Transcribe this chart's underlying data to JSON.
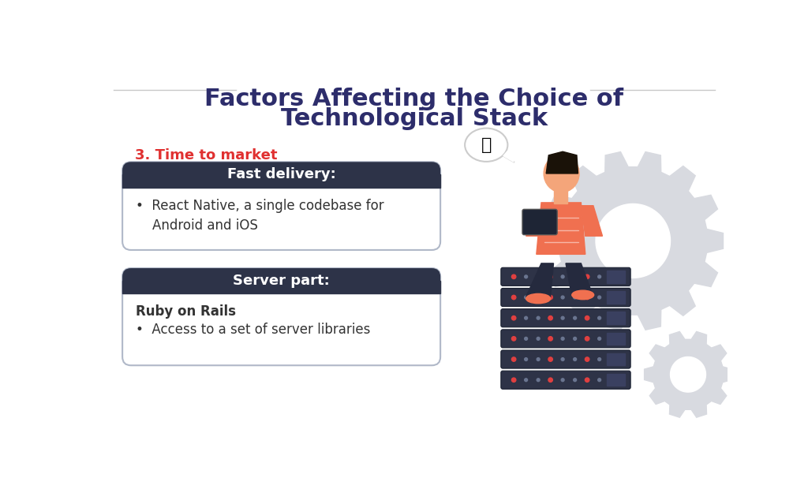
{
  "background_color": "#ffffff",
  "title_line1": "Factors Affecting the Choice of",
  "title_line2": "Technological Stack",
  "title_color": "#2d2d6b",
  "title_fontsize": 22,
  "divider_color": "#c8c8c8",
  "subtitle": "3. Time to market",
  "subtitle_color": "#e03030",
  "subtitle_fontsize": 13,
  "box1_header": "Fast delivery:",
  "box1_header_bg": "#2d3348",
  "box1_header_color": "#ffffff",
  "box1_bullet": "•  React Native, a single codebase for\n    Android and iOS",
  "box1_body_color": "#333333",
  "box2_header": "Server part:",
  "box2_header_bg": "#2d3348",
  "box2_header_color": "#ffffff",
  "box2_bold": "Ruby on Rails",
  "box2_bullet": "•  Access to a set of server libraries",
  "box2_body_color": "#333333",
  "box_border_color": "#b0b8c8",
  "gear_color": "#d8dae0",
  "person_skin": "#f4a57a",
  "person_shirt": "#f07050",
  "person_pants": "#252a3e",
  "person_hair": "#1a1208",
  "server_dark": "#2e3347",
  "server_mid": "#3a4060",
  "server_light": "#4a5578",
  "server_red": "#e04040",
  "server_gray": "#505870"
}
